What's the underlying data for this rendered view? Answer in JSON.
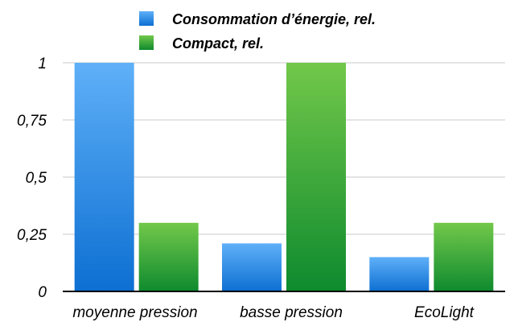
{
  "chart_data": {
    "type": "bar",
    "categories": [
      "moyenne pression",
      "basse pression",
      "EcoLight"
    ],
    "series": [
      {
        "name": "Consommation d’énergie, rel.",
        "values": [
          1,
          0.21,
          0.15
        ],
        "color": "#2d8ae6"
      },
      {
        "name": "Compact, rel.",
        "values": [
          0.3,
          1,
          0.3
        ],
        "color": "#2ea335"
      }
    ],
    "ylim": [
      0,
      1
    ],
    "yticks": [
      0,
      0.25,
      0.5,
      0.75,
      1
    ],
    "ytick_labels": [
      "0",
      "0,25",
      "0,5",
      "0,75",
      "1"
    ],
    "grid": true,
    "legend_position": "top"
  }
}
